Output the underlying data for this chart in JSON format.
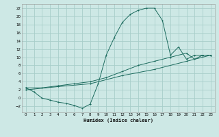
{
  "xlabel": "Humidex (Indice chaleur)",
  "bg_color": "#cde8e5",
  "grid_color": "#a8ceca",
  "line_color": "#1c6b5e",
  "xlim": [
    -0.5,
    23.5
  ],
  "ylim": [
    -3.5,
    23
  ],
  "xticks": [
    0,
    1,
    2,
    3,
    4,
    5,
    6,
    7,
    8,
    9,
    10,
    11,
    12,
    13,
    14,
    15,
    16,
    17,
    18,
    19,
    20,
    21,
    22,
    23
  ],
  "yticks": [
    -2,
    0,
    2,
    4,
    6,
    8,
    10,
    12,
    14,
    16,
    18,
    20,
    22
  ],
  "curve1_x": [
    0,
    1,
    2,
    3,
    4,
    5,
    6,
    7,
    8,
    9,
    10,
    11,
    12,
    13,
    14,
    15,
    16,
    17,
    18,
    19,
    20,
    21,
    22,
    23
  ],
  "curve1_y": [
    2.5,
    1.5,
    0.0,
    -0.5,
    -1.0,
    -1.3,
    -1.8,
    -2.5,
    -1.5,
    3.5,
    10.5,
    14.8,
    18.5,
    20.5,
    21.5,
    22.0,
    22.0,
    19.0,
    10.5,
    12.5,
    9.5,
    10.5,
    10.5,
    10.5
  ],
  "curve2_x": [
    0,
    2,
    4,
    6,
    8,
    10,
    12,
    14,
    16,
    18,
    20,
    21,
    22,
    23
  ],
  "curve2_y": [
    2.5,
    2.5,
    3.0,
    3.5,
    4.0,
    5.0,
    6.5,
    8.0,
    9.0,
    10.0,
    11.0,
    9.5,
    10.5,
    10.5
  ],
  "curve3_x": [
    0,
    4,
    8,
    12,
    16,
    20,
    23
  ],
  "curve3_y": [
    2.0,
    2.8,
    3.5,
    5.5,
    7.0,
    9.0,
    10.5
  ]
}
